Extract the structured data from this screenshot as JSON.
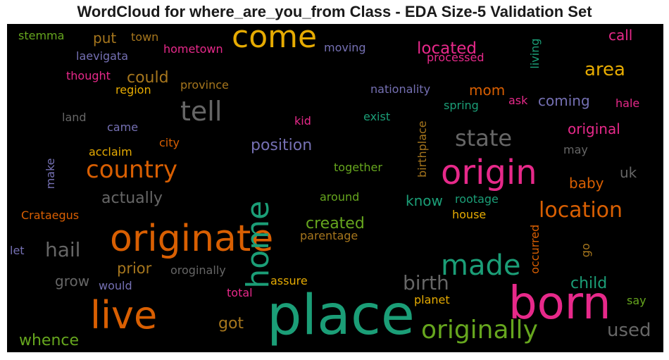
{
  "title": "WordCloud for where_are_you_from Class - EDA Size-5 Validation Set",
  "colors": {
    "background": "#000000",
    "orange": "#d95f02",
    "gold": "#e6ab02",
    "green": "#1b9e77",
    "lime": "#66a61e",
    "magenta": "#e7298a",
    "purple": "#7570b3",
    "gray": "#666666",
    "brown": "#a6761d"
  },
  "chart_data": {
    "type": "wordcloud",
    "title": "WordCloud for where_are_you_from Class - EDA Size-5 Validation Set",
    "words": [
      {
        "text": "place",
        "weight": 100,
        "color": "green"
      },
      {
        "text": "born",
        "weight": 93,
        "color": "magenta"
      },
      {
        "text": "originate",
        "weight": 80,
        "color": "orange"
      },
      {
        "text": "live",
        "weight": 79,
        "color": "orange"
      },
      {
        "text": "origin",
        "weight": 72,
        "color": "magenta"
      },
      {
        "text": "come",
        "weight": 70,
        "color": "gold"
      },
      {
        "text": "home",
        "weight": 68,
        "color": "green"
      },
      {
        "text": "made",
        "weight": 62,
        "color": "green"
      },
      {
        "text": "originally",
        "weight": 58,
        "color": "lime"
      },
      {
        "text": "tell",
        "weight": 56,
        "color": "gray"
      },
      {
        "text": "country",
        "weight": 52,
        "color": "orange"
      },
      {
        "text": "state",
        "weight": 45,
        "color": "gray"
      },
      {
        "text": "location",
        "weight": 44,
        "color": "orange"
      },
      {
        "text": "hail",
        "weight": 39,
        "color": "gray"
      },
      {
        "text": "birth",
        "weight": 38,
        "color": "gray"
      },
      {
        "text": "used",
        "weight": 34,
        "color": "gray"
      },
      {
        "text": "area",
        "weight": 33,
        "color": "gold"
      },
      {
        "text": "located",
        "weight": 32,
        "color": "magenta"
      },
      {
        "text": "could",
        "weight": 31,
        "color": "brown"
      },
      {
        "text": "actually",
        "weight": 31,
        "color": "gray"
      },
      {
        "text": "created",
        "weight": 30,
        "color": "lime"
      },
      {
        "text": "position",
        "weight": 30,
        "color": "purple"
      },
      {
        "text": "child",
        "weight": 30,
        "color": "green"
      },
      {
        "text": "whence",
        "weight": 29,
        "color": "lime"
      },
      {
        "text": "got",
        "weight": 29,
        "color": "brown"
      },
      {
        "text": "prior",
        "weight": 28,
        "color": "brown"
      },
      {
        "text": "baby",
        "weight": 28,
        "color": "orange"
      },
      {
        "text": "coming",
        "weight": 28,
        "color": "purple"
      },
      {
        "text": "original",
        "weight": 27,
        "color": "magenta"
      },
      {
        "text": "know",
        "weight": 27,
        "color": "green"
      },
      {
        "text": "uk",
        "weight": 27,
        "color": "gray"
      },
      {
        "text": "mom",
        "weight": 27,
        "color": "orange"
      },
      {
        "text": "grow",
        "weight": 27,
        "color": "gray"
      },
      {
        "text": "put",
        "weight": 26,
        "color": "brown"
      },
      {
        "text": "call",
        "weight": 26,
        "color": "magenta"
      },
      {
        "text": "stemma",
        "weight": 22,
        "color": "lime"
      },
      {
        "text": "town",
        "weight": 22,
        "color": "brown"
      },
      {
        "text": "hometown",
        "weight": 22,
        "color": "magenta"
      },
      {
        "text": "moving",
        "weight": 22,
        "color": "purple"
      },
      {
        "text": "processed",
        "weight": 22,
        "color": "magenta"
      },
      {
        "text": "living",
        "weight": 22,
        "color": "green"
      },
      {
        "text": "laevigata",
        "weight": 22,
        "color": "purple"
      },
      {
        "text": "thought",
        "weight": 22,
        "color": "magenta"
      },
      {
        "text": "region",
        "weight": 22,
        "color": "gold"
      },
      {
        "text": "province",
        "weight": 22,
        "color": "brown"
      },
      {
        "text": "nationality",
        "weight": 22,
        "color": "purple"
      },
      {
        "text": "ask",
        "weight": 22,
        "color": "magenta"
      },
      {
        "text": "hale",
        "weight": 22,
        "color": "magenta"
      },
      {
        "text": "spring",
        "weight": 22,
        "color": "green"
      },
      {
        "text": "land",
        "weight": 22,
        "color": "gray"
      },
      {
        "text": "kid",
        "weight": 22,
        "color": "magenta"
      },
      {
        "text": "exist",
        "weight": 22,
        "color": "green"
      },
      {
        "text": "birthplace",
        "weight": 22,
        "color": "brown"
      },
      {
        "text": "came",
        "weight": 22,
        "color": "purple"
      },
      {
        "text": "city",
        "weight": 22,
        "color": "orange"
      },
      {
        "text": "acclaim",
        "weight": 22,
        "color": "gold"
      },
      {
        "text": "may",
        "weight": 22,
        "color": "gray"
      },
      {
        "text": "make",
        "weight": 22,
        "color": "purple"
      },
      {
        "text": "together",
        "weight": 22,
        "color": "lime"
      },
      {
        "text": "around",
        "weight": 22,
        "color": "lime"
      },
      {
        "text": "rootage",
        "weight": 22,
        "color": "green"
      },
      {
        "text": "house",
        "weight": 22,
        "color": "gold"
      },
      {
        "text": "Crataegus",
        "weight": 22,
        "color": "orange"
      },
      {
        "text": "parentage",
        "weight": 22,
        "color": "brown"
      },
      {
        "text": "let",
        "weight": 22,
        "color": "purple"
      },
      {
        "text": "oroginally",
        "weight": 22,
        "color": "gray"
      },
      {
        "text": "occurred",
        "weight": 22,
        "color": "orange"
      },
      {
        "text": "go",
        "weight": 22,
        "color": "brown"
      },
      {
        "text": "would",
        "weight": 22,
        "color": "purple"
      },
      {
        "text": "assure",
        "weight": 22,
        "color": "gold"
      },
      {
        "text": "total",
        "weight": 22,
        "color": "magenta"
      },
      {
        "text": "planet",
        "weight": 22,
        "color": "gold"
      },
      {
        "text": "say",
        "weight": 22,
        "color": "lime"
      }
    ]
  }
}
